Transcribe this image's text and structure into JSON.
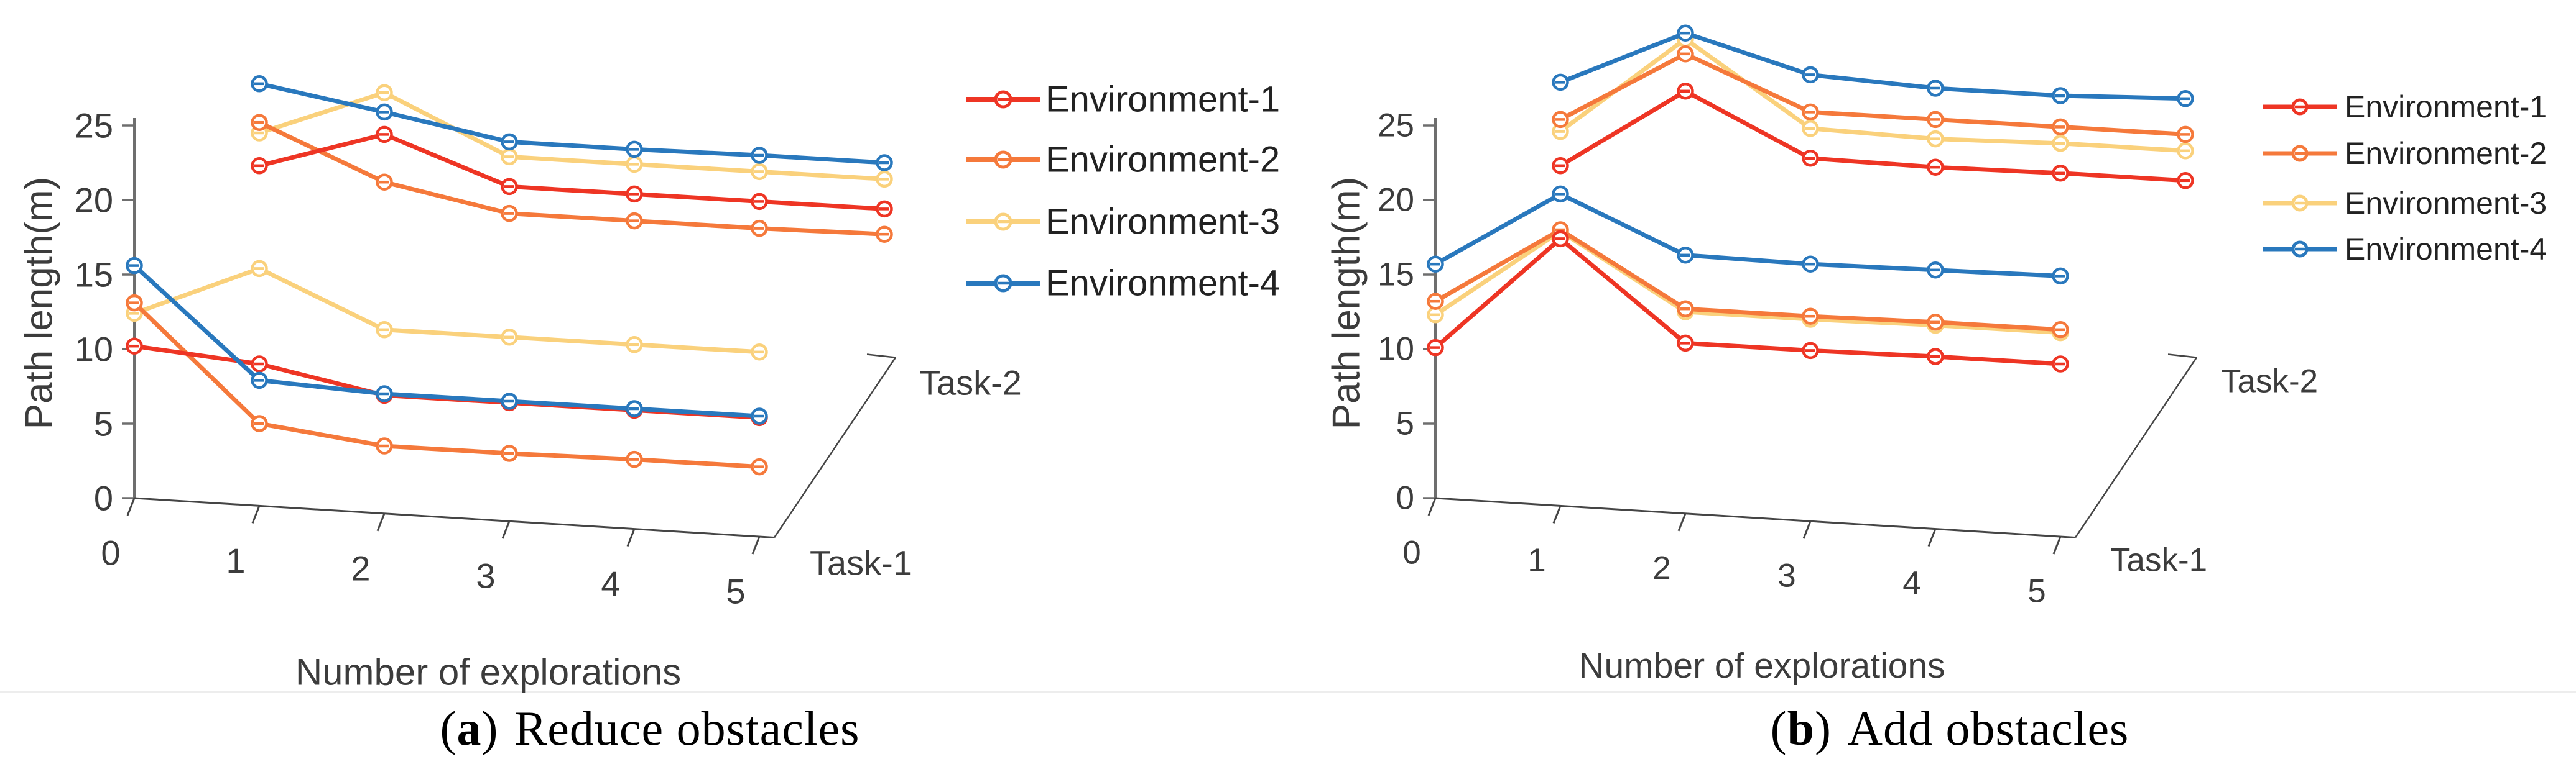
{
  "figure": {
    "background": "#ffffff",
    "panels": [
      {
        "caption": {
          "open": "(",
          "letter": "a",
          "close": ")",
          "text": "Reduce obstacles"
        },
        "ylabel": "Path length(m)",
        "xlabel": "Number of explorations",
        "ytick_labels": [
          "0",
          "5",
          "10",
          "15",
          "20",
          "25"
        ],
        "xtick_labels": [
          "0",
          "1",
          "2",
          "3",
          "4",
          "5"
        ],
        "near_task_label": "Task-1",
        "far_task_label": "Task-2",
        "legend_items": [
          {
            "label": "Environment-1",
            "color": "#ee3524"
          },
          {
            "label": "Environment-2",
            "color": "#f5793b"
          },
          {
            "label": "Environment-3",
            "color": "#fad17c"
          },
          {
            "label": "Environment-4",
            "color": "#2978bd"
          }
        ]
      },
      {
        "caption": {
          "open": "(",
          "letter": "b",
          "close": ")",
          "text": "Add obstacles"
        },
        "ylabel": "Path length(m)",
        "xlabel": "Number of explorations",
        "ytick_labels": [
          "0",
          "5",
          "10",
          "15",
          "20",
          "25"
        ],
        "xtick_labels": [
          "0",
          "1",
          "2",
          "3",
          "4",
          "5"
        ],
        "near_task_label": "Task-1",
        "far_task_label": "Task-2",
        "legend_items": [
          {
            "label": "Environment-1",
            "color": "#ee3524"
          },
          {
            "label": "Environment-2",
            "color": "#f5793b"
          },
          {
            "label": "Environment-3",
            "color": "#fad17c"
          },
          {
            "label": "Environment-4",
            "color": "#2978bd"
          }
        ]
      }
    ]
  },
  "colors": {
    "env1": "#ee3524",
    "env2": "#f5793b",
    "env3": "#fad17c",
    "env4": "#2978bd",
    "axis": "#6e6e6e",
    "floor_axis": "#454545",
    "tick_text": "#3c3c3c",
    "marker_fill": "#ffffff"
  },
  "chart_data": [
    {
      "type": "line",
      "projection": "3d-two-depth-rows",
      "title": "(a) Reduce obstacles",
      "xlabel": "Number of explorations",
      "ylabel": "Path length(m)",
      "x": [
        0,
        1,
        2,
        3,
        4,
        5
      ],
      "ylim": [
        0,
        25
      ],
      "yticks": [
        0,
        5,
        10,
        15,
        20,
        25
      ],
      "depth_rows": [
        "Task-1",
        "Task-2"
      ],
      "apparent_depth_offset": {
        "x_units": 1.0,
        "y_units": 12.1
      },
      "grid": false,
      "legend": {
        "position": "right-of-plot",
        "entries": [
          "Environment-1",
          "Environment-2",
          "Environment-3",
          "Environment-4"
        ]
      },
      "series": [
        {
          "name": "Environment-1",
          "task": "Task-1",
          "color_key": "env1",
          "values": [
            10.2,
            9.0,
            6.9,
            6.4,
            5.9,
            5.4
          ]
        },
        {
          "name": "Environment-2",
          "task": "Task-1",
          "color_key": "env2",
          "values": [
            13.1,
            5.0,
            3.5,
            3.0,
            2.6,
            2.1
          ]
        },
        {
          "name": "Environment-3",
          "task": "Task-1",
          "color_key": "env3",
          "values": [
            12.4,
            15.4,
            11.3,
            10.8,
            10.3,
            9.8
          ]
        },
        {
          "name": "Environment-4",
          "task": "Task-1",
          "color_key": "env4",
          "values": [
            15.6,
            7.9,
            7.0,
            6.5,
            6.0,
            5.5
          ]
        },
        {
          "name": "Environment-1",
          "task": "Task-2",
          "color_key": "env1",
          "values": [
            10.2,
            12.3,
            8.8,
            8.3,
            7.8,
            7.3
          ]
        },
        {
          "name": "Environment-2",
          "task": "Task-2",
          "color_key": "env2",
          "values": [
            13.1,
            9.1,
            7.0,
            6.5,
            6.0,
            5.6
          ]
        },
        {
          "name": "Environment-3",
          "task": "Task-2",
          "color_key": "env3",
          "values": [
            12.4,
            15.1,
            10.8,
            10.3,
            9.8,
            9.3
          ]
        },
        {
          "name": "Environment-4",
          "task": "Task-2",
          "color_key": "env4",
          "values": [
            15.7,
            13.8,
            11.8,
            11.3,
            10.9,
            10.4
          ]
        }
      ]
    },
    {
      "type": "line",
      "projection": "3d-two-depth-rows",
      "title": "(b) Add obstacles",
      "xlabel": "Number of explorations",
      "ylabel": "Path length(m)",
      "x": [
        0,
        1,
        2,
        3,
        4,
        5
      ],
      "ylim": [
        0,
        25
      ],
      "yticks": [
        0,
        5,
        10,
        15,
        20,
        25
      ],
      "depth_rows": [
        "Task-1",
        "Task-2"
      ],
      "apparent_depth_offset": {
        "x_units": 1.0,
        "y_units": 12.1
      },
      "grid": false,
      "legend": {
        "position": "right-of-plot",
        "entries": [
          "Environment-1",
          "Environment-2",
          "Environment-3",
          "Environment-4"
        ]
      },
      "series": [
        {
          "name": "Environment-1",
          "task": "Task-1",
          "color_key": "env1",
          "values": [
            10.1,
            17.4,
            10.4,
            9.9,
            9.5,
            9.0
          ]
        },
        {
          "name": "Environment-2",
          "task": "Task-1",
          "color_key": "env2",
          "values": [
            13.2,
            18.0,
            12.7,
            12.2,
            11.8,
            11.3
          ]
        },
        {
          "name": "Environment-3",
          "task": "Task-1",
          "color_key": "env3",
          "values": [
            12.3,
            17.9,
            12.5,
            12.0,
            11.6,
            11.1
          ]
        },
        {
          "name": "Environment-4",
          "task": "Task-1",
          "color_key": "env4",
          "values": [
            15.7,
            20.4,
            16.3,
            15.7,
            15.3,
            14.9
          ]
        },
        {
          "name": "Environment-1",
          "task": "Task-2",
          "color_key": "env1",
          "values": [
            10.2,
            15.2,
            10.7,
            10.1,
            9.7,
            9.2
          ]
        },
        {
          "name": "Environment-2",
          "task": "Task-2",
          "color_key": "env2",
          "values": [
            13.3,
            17.7,
            13.8,
            13.3,
            12.8,
            12.3
          ]
        },
        {
          "name": "Environment-3",
          "task": "Task-2",
          "color_key": "env3",
          "values": [
            12.5,
            18.7,
            12.7,
            12.0,
            11.7,
            11.2
          ]
        },
        {
          "name": "Environment-4",
          "task": "Task-2",
          "color_key": "env4",
          "values": [
            15.8,
            19.1,
            16.3,
            15.4,
            14.9,
            14.7
          ]
        }
      ]
    }
  ]
}
